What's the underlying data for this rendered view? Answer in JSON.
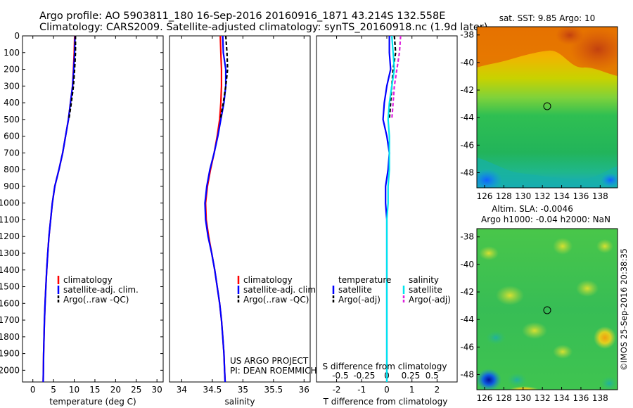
{
  "header": {
    "line1": "Argo profile: AO 5903811_180 16-Sep-2016 20160916_1871 43.214S 132.558E",
    "line2": "Climatology: CARS2009. Satellite-adjusted climatology: synTS_20160918.nc (1.9d later)"
  },
  "colors": {
    "climatology": "#ff0000",
    "satellite": "#0000ff",
    "argo": "#000000",
    "sal_satellite": "#00e5ee",
    "sal_argo": "#dd22dd"
  },
  "depth_axis": {
    "ticks": [
      0,
      100,
      200,
      300,
      400,
      500,
      600,
      700,
      800,
      900,
      1000,
      1100,
      1200,
      1300,
      1400,
      1500,
      1600,
      1700,
      1800,
      1900,
      2000
    ],
    "ylim": [
      0,
      2070
    ]
  },
  "chart_data": [
    {
      "type": "line",
      "panel": "temperature",
      "xlabel": "temperature (deg C)",
      "xticks": [
        0,
        5,
        10,
        15,
        20,
        25,
        30
      ],
      "xlim": [
        -2.5,
        31.5
      ],
      "ylim": [
        0,
        2070
      ],
      "legend": [
        "climatology",
        "satellite-adj. clim.",
        "Argo(..raw -QC)"
      ],
      "series": [
        {
          "name": "climatology",
          "color": "#ff0000",
          "dash": false,
          "x": [
            10.1,
            10.0,
            9.8,
            9.6,
            9.1,
            8.6,
            7.9,
            7.2,
            6.3,
            5.3,
            4.7,
            4.3,
            3.9,
            3.6,
            3.35,
            3.15,
            2.95,
            2.8,
            2.7,
            2.6,
            2.55,
            2.5
          ],
          "y": [
            0,
            100,
            200,
            300,
            400,
            500,
            600,
            700,
            800,
            900,
            1000,
            1100,
            1200,
            1300,
            1400,
            1500,
            1600,
            1700,
            1800,
            1900,
            2000,
            2070
          ]
        },
        {
          "name": "satellite-adj. clim.",
          "color": "#0000ff",
          "dash": false,
          "x": [
            10.2,
            10.1,
            9.9,
            9.6,
            9.1,
            8.6,
            7.9,
            7.2,
            6.3,
            5.3,
            4.7,
            4.3,
            3.9,
            3.6,
            3.35,
            3.15,
            2.95,
            2.8,
            2.7,
            2.6,
            2.55,
            2.5
          ],
          "y": [
            0,
            100,
            200,
            300,
            400,
            500,
            600,
            700,
            800,
            900,
            1000,
            1100,
            1200,
            1300,
            1400,
            1500,
            1600,
            1700,
            1800,
            1900,
            2000,
            2070
          ]
        },
        {
          "name": "Argo(..raw -QC)",
          "color": "#000000",
          "dash": true,
          "x": [
            10.3,
            10.3,
            10.1,
            9.8,
            9.3,
            8.7
          ],
          "y": [
            0,
            100,
            200,
            300,
            400,
            500
          ]
        }
      ]
    },
    {
      "type": "line",
      "panel": "salinity",
      "xlabel": "salinity",
      "xticks": [
        34,
        34.5,
        35,
        35.5,
        36
      ],
      "xlim": [
        33.8,
        36.1
      ],
      "ylim": [
        0,
        2070
      ],
      "legend": [
        "climatology",
        "satellite-adj. clim.",
        "Argo(..raw -QC)"
      ],
      "series": [
        {
          "name": "climatology",
          "color": "#ff0000",
          "dash": false,
          "x": [
            34.63,
            34.64,
            34.65,
            34.65,
            34.64,
            34.62,
            34.58,
            34.53,
            34.47,
            34.42,
            34.39,
            34.4,
            34.44,
            34.49,
            34.54,
            34.58,
            34.62,
            34.65,
            34.67,
            34.69,
            34.7,
            34.71
          ],
          "y": [
            0,
            100,
            200,
            300,
            400,
            500,
            600,
            700,
            800,
            900,
            1000,
            1100,
            1200,
            1300,
            1400,
            1500,
            1600,
            1700,
            1800,
            1900,
            2000,
            2070
          ]
        },
        {
          "name": "satellite-adj. clim.",
          "color": "#0000ff",
          "dash": false,
          "x": [
            34.67,
            34.68,
            34.72,
            34.72,
            34.69,
            34.64,
            34.59,
            34.53,
            34.46,
            34.41,
            34.38,
            34.39,
            34.43,
            34.49,
            34.54,
            34.58,
            34.62,
            34.65,
            34.67,
            34.69,
            34.7,
            34.71
          ],
          "y": [
            0,
            100,
            200,
            300,
            400,
            500,
            600,
            700,
            800,
            900,
            1000,
            1100,
            1200,
            1300,
            1400,
            1500,
            1600,
            1700,
            1800,
            1900,
            2000,
            2070
          ]
        },
        {
          "name": "Argo(..raw -QC)",
          "color": "#000000",
          "dash": true,
          "x": [
            34.72,
            34.74,
            34.75,
            34.72,
            34.68,
            34.63
          ],
          "y": [
            0,
            100,
            200,
            300,
            400,
            500
          ]
        }
      ]
    },
    {
      "type": "line",
      "panel": "difference",
      "xlabel": "T difference from climatology",
      "top_label": "S difference from climatology",
      "xticks": [
        -2,
        -1,
        0,
        1,
        2
      ],
      "xticks_top": [
        "-0.5",
        "-0.25",
        "0",
        "0.25",
        "0.5"
      ],
      "xlim": [
        -2.8,
        2.8
      ],
      "ylim": [
        0,
        2070
      ],
      "legend_title_temp": "temperature",
      "legend_title_sal": "salinity",
      "legend": [
        "satellite",
        "Argo(-adj)",
        "satellite",
        "Argo(-adj)"
      ],
      "series": [
        {
          "name": "satellite",
          "color": "#0000ff",
          "dash": false,
          "x": [
            0.1,
            0.1,
            0.15,
            0.0,
            -0.1,
            -0.15,
            0.0,
            0.1,
            0.05,
            -0.05,
            -0.05,
            0.0,
            0.0,
            0.0,
            0.0,
            0.0,
            0.0,
            0.0,
            0.0,
            0.0,
            0.0,
            0.0
          ],
          "y": [
            0,
            100,
            200,
            300,
            400,
            500,
            600,
            700,
            800,
            900,
            1000,
            1100,
            1200,
            1300,
            1400,
            1500,
            1600,
            1700,
            1800,
            1900,
            2000,
            2070
          ]
        },
        {
          "name": "Argo(-adj)",
          "color": "#000000",
          "dash": true,
          "x": [
            0.3,
            0.35,
            0.25,
            0.2,
            0.15,
            0.1
          ],
          "y": [
            0,
            100,
            200,
            300,
            400,
            500
          ]
        },
        {
          "name": "satellite",
          "color": "#00e5ee",
          "dash": false,
          "x": [
            0.2,
            0.25,
            0.3,
            0.2,
            0.1,
            0.05,
            0.1,
            0.1,
            0.1,
            0.05,
            0.05,
            0.0,
            0.0,
            0.0,
            0.0,
            0.0,
            0.0,
            0.0,
            0.0,
            0.0,
            0.0,
            0.0
          ],
          "y": [
            0,
            100,
            200,
            300,
            400,
            500,
            600,
            700,
            800,
            900,
            1000,
            1100,
            1200,
            1300,
            1400,
            1500,
            1600,
            1700,
            1800,
            1900,
            2000,
            2070
          ]
        },
        {
          "name": "Argo(-adj)",
          "color": "#dd22dd",
          "dash": true,
          "x": [
            0.55,
            0.5,
            0.4,
            0.3,
            0.25,
            0.2
          ],
          "y": [
            0,
            100,
            200,
            300,
            400,
            500
          ]
        }
      ]
    },
    {
      "type": "heatmap",
      "panel": "sst-map",
      "title": "sat. SST: 9.85 Argo: 10",
      "xticks": [
        126,
        128,
        130,
        132,
        134,
        136,
        138
      ],
      "yticks": [
        -38,
        -40,
        -42,
        -44,
        -46,
        -48
      ],
      "xlim": [
        125.2,
        139.8
      ],
      "ylim": [
        -49.1,
        -37.4
      ],
      "marker": {
        "lon": 132.558,
        "lat": -43.214
      }
    },
    {
      "type": "heatmap",
      "panel": "sla-map",
      "title_line1": "Altim. SLA: -0.0046",
      "title_line2": "Argo h1000: -0.04 h2000: NaN",
      "xticks": [
        126,
        128,
        130,
        132,
        134,
        136,
        138
      ],
      "yticks": [
        -38,
        -40,
        -42,
        -44,
        -46,
        -48
      ],
      "xlim": [
        125.2,
        139.8
      ],
      "ylim": [
        -49.1,
        -37.4
      ],
      "marker": {
        "lon": 132.558,
        "lat": -43.214
      }
    }
  ],
  "footer": {
    "note_line1": "US ARGO PROJECT",
    "note_line2": "PI: DEAN ROEMMICH",
    "credit": "©IMOS 25-Sep-2016 20:38:35"
  }
}
